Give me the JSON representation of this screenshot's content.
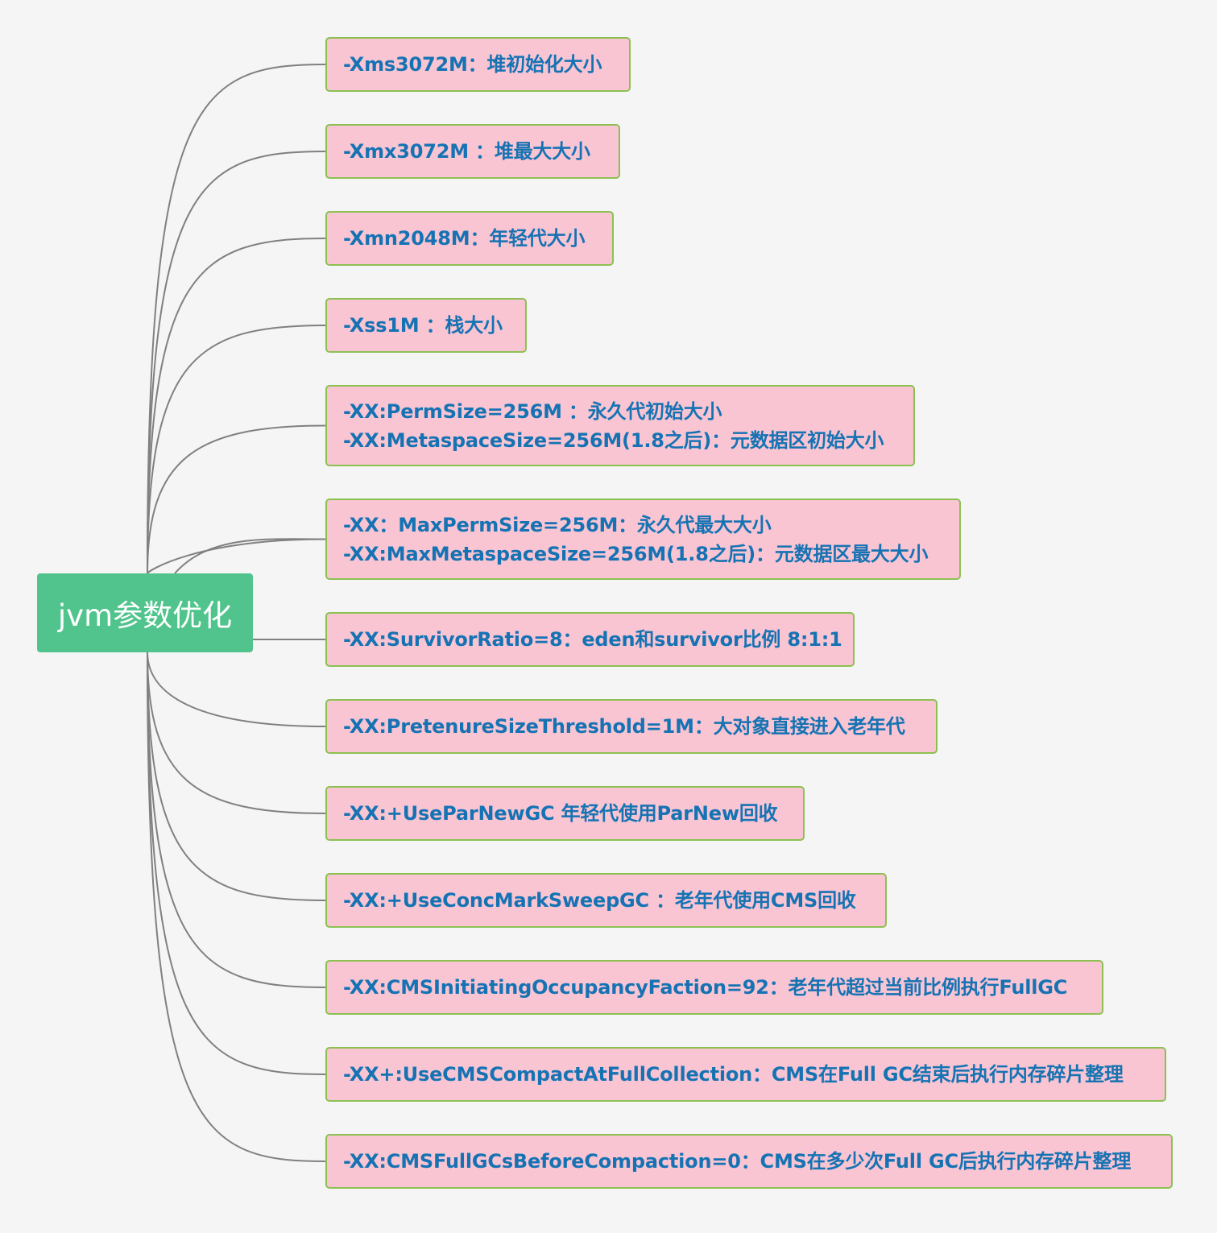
{
  "root": {
    "label": "jvm参数优化"
  },
  "branches": [
    {
      "lines": [
        "-Xms3072M：堆初始化大小"
      ]
    },
    {
      "lines": [
        "-Xmx3072M ：堆最大大小"
      ]
    },
    {
      "lines": [
        "-Xmn2048M：年轻代大小"
      ]
    },
    {
      "lines": [
        "-Xss1M ：栈大小"
      ]
    },
    {
      "lines": [
        "-XX:PermSize=256M ：永久代初始大小",
        "-XX:MetaspaceSize=256M(1.8之后)：元数据区初始大小"
      ]
    },
    {
      "lines": [
        "-XX：MaxPermSize=256M：永久代最大大小",
        "-XX:MaxMetaspaceSize=256M(1.8之后)：元数据区最大大小"
      ]
    },
    {
      "lines": [
        "-XX:SurvivorRatio=8：eden和survivor比例 8:1:1"
      ]
    },
    {
      "lines": [
        "-XX:PretenureSizeThreshold=1M：大对象直接进入老年代"
      ]
    },
    {
      "lines": [
        "-XX:+UseParNewGC 年轻代使用ParNew回收"
      ]
    },
    {
      "lines": [
        "-XX:+UseConcMarkSweepGC ：老年代使用CMS回收"
      ]
    },
    {
      "lines": [
        "-XX:CMSInitiatingOccupancyFaction=92：老年代超过当前比例执行FullGC"
      ]
    },
    {
      "lines": [
        "-XX+:UseCMSCompactAtFullCollection：CMS在Full GC结束后执行内存碎片整理"
      ]
    },
    {
      "lines": [
        "-XX:CMSFullGCsBeforeCompaction=0：CMS在多少次Full GC后执行内存碎片整理"
      ]
    }
  ],
  "colors": {
    "background": "#f5f5f5",
    "root_fill": "#50c48c",
    "root_text": "#ffffff",
    "branch_fill": "#f9c5d3",
    "branch_border": "#8cc152",
    "branch_text": "#1673b3",
    "connector": "#808080"
  }
}
